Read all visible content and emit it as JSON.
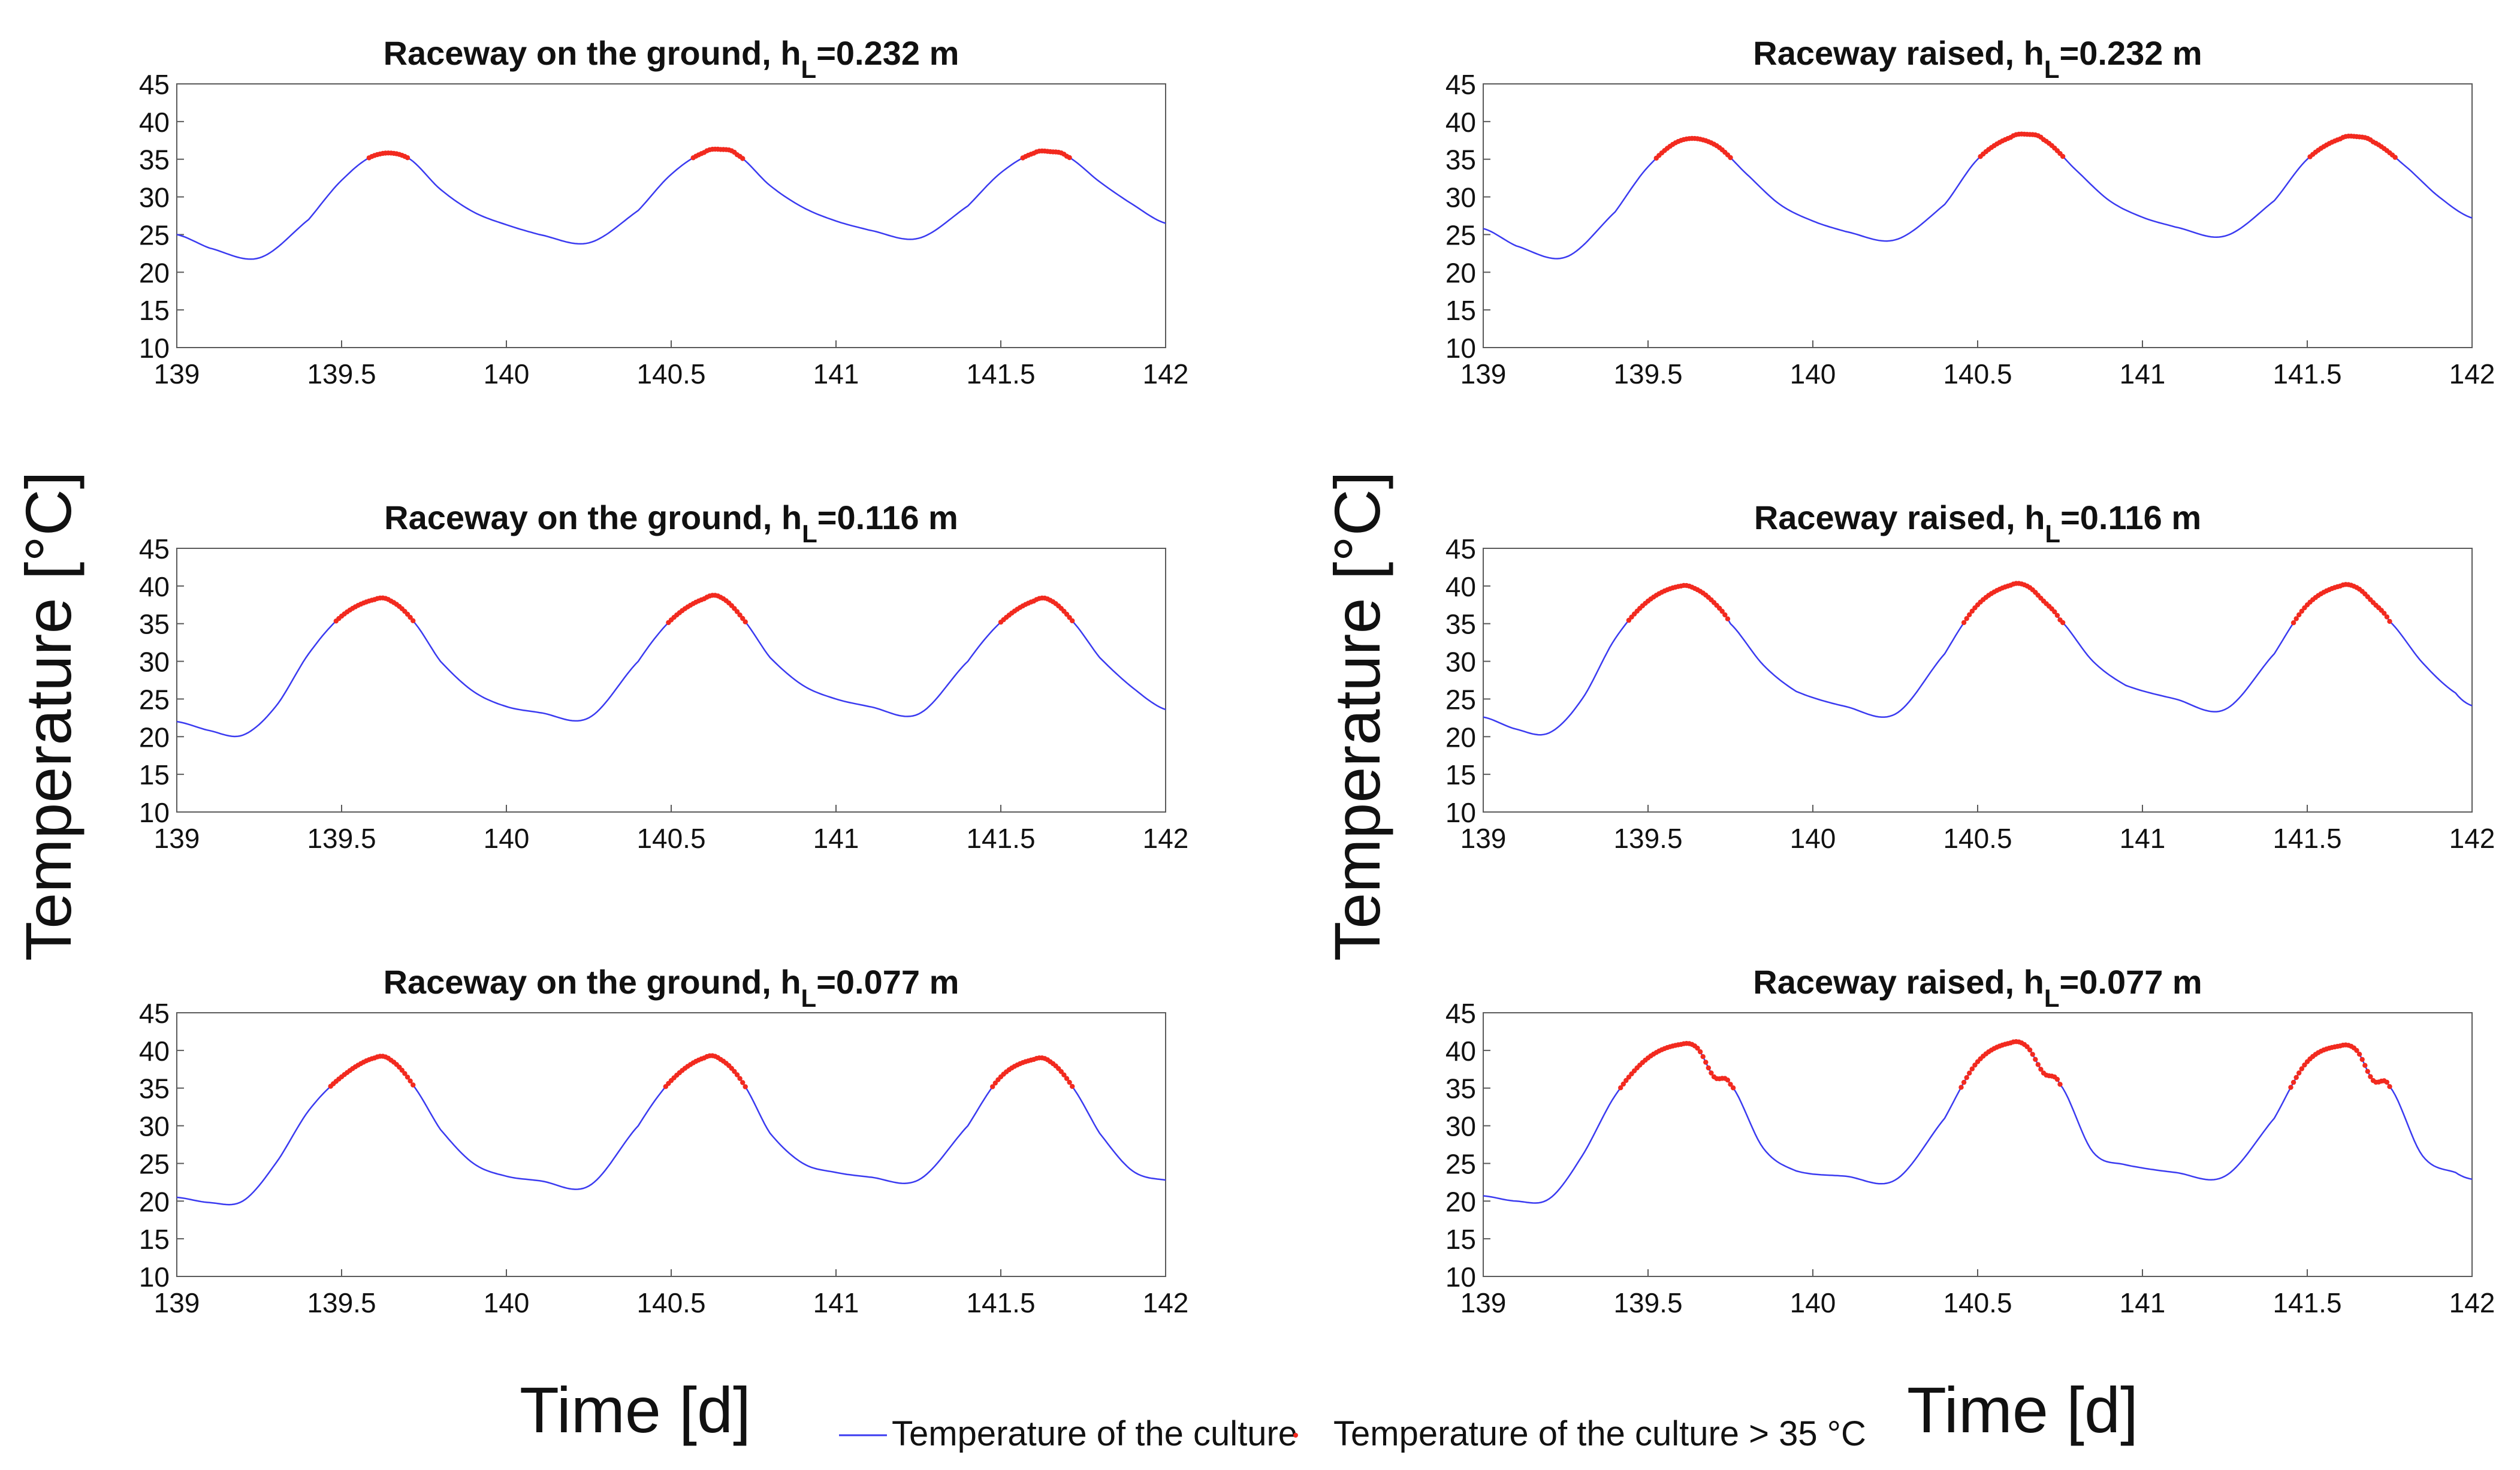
{
  "figure": {
    "left_ylabel": "Temperature [°C]",
    "right_ylabel": "Temperature [°C]",
    "left_xlabel": "Time [d]",
    "right_xlabel": "Time [d]",
    "legend": {
      "line_label": "Temperature of the culture",
      "dot_label": "Temperature of the culture > 35 °C"
    }
  },
  "colors": {
    "line": "#3a3af0",
    "hot": "#f22a1f",
    "axis": "#5a5a5a",
    "text": "#111111"
  },
  "chart_data": [
    {
      "type": "line",
      "title_prefix": "Raceway on the ground, h",
      "title_sub": "L",
      "title_suffix": "=0.232 m",
      "xlim": [
        139,
        142
      ],
      "ylim": [
        10,
        45
      ],
      "xticks": [
        "139",
        "139.5",
        "140",
        "140.5",
        "141",
        "141.5",
        "142"
      ],
      "yticks": [
        "10",
        "15",
        "20",
        "25",
        "30",
        "35",
        "40",
        "45"
      ],
      "threshold": 35,
      "x": [
        139,
        139.1,
        139.25,
        139.4,
        139.5,
        139.6,
        139.7,
        139.8,
        139.9,
        140.0,
        140.1,
        140.25,
        140.4,
        140.5,
        140.6,
        140.65,
        140.7,
        140.8,
        140.9,
        141.0,
        141.1,
        141.25,
        141.4,
        141.5,
        141.6,
        141.65,
        141.7,
        141.8,
        141.9,
        142.0
      ],
      "y": [
        25.0,
        23.2,
        21.9,
        27.0,
        32.2,
        35.5,
        35.2,
        31.0,
        28.0,
        26.3,
        25.0,
        23.9,
        28.2,
        33.0,
        35.9,
        36.3,
        35.6,
        31.5,
        28.6,
        26.8,
        25.6,
        24.5,
        28.8,
        33.2,
        35.8,
        36.0,
        35.4,
        32.0,
        29.0,
        26.5
      ]
    },
    {
      "type": "line",
      "title_prefix": "Raceway raised, h",
      "title_sub": "L",
      "title_suffix": "=0.232 m",
      "xlim": [
        139,
        142
      ],
      "ylim": [
        10,
        45
      ],
      "xticks": [
        "139",
        "139.5",
        "140",
        "140.5",
        "141",
        "141.5",
        "142"
      ],
      "yticks": [
        "10",
        "15",
        "20",
        "25",
        "30",
        "35",
        "40",
        "45"
      ],
      "threshold": 35,
      "x": [
        139,
        139.1,
        139.25,
        139.4,
        139.5,
        139.6,
        139.7,
        139.8,
        139.9,
        140.0,
        140.1,
        140.25,
        140.4,
        140.5,
        140.6,
        140.65,
        140.7,
        140.8,
        140.9,
        141.0,
        141.1,
        141.25,
        141.4,
        141.5,
        141.6,
        141.65,
        141.7,
        141.8,
        141.9,
        142.0
      ],
      "y": [
        25.8,
        23.5,
        22.0,
        28.0,
        34.0,
        37.5,
        37.0,
        33.0,
        29.0,
        26.8,
        25.4,
        24.3,
        29.0,
        35.0,
        37.9,
        38.3,
        37.6,
        33.5,
        29.5,
        27.3,
        26.0,
        24.8,
        29.5,
        35.0,
        37.7,
        38.0,
        37.3,
        34.0,
        30.0,
        27.2
      ]
    },
    {
      "type": "line",
      "title_prefix": "Raceway on the ground, h",
      "title_sub": "L",
      "title_suffix": "=0.116 m",
      "xlim": [
        139,
        142
      ],
      "ylim": [
        10,
        45
      ],
      "xticks": [
        "139",
        "139.5",
        "140",
        "140.5",
        "141",
        "141.5",
        "142"
      ],
      "yticks": [
        "10",
        "15",
        "20",
        "25",
        "30",
        "35",
        "40",
        "45"
      ],
      "threshold": 35,
      "x": [
        139,
        139.1,
        139.2,
        139.3,
        139.4,
        139.5,
        139.6,
        139.65,
        139.72,
        139.8,
        139.9,
        140.0,
        140.1,
        140.25,
        140.4,
        140.5,
        140.6,
        140.65,
        140.72,
        140.8,
        140.9,
        141.0,
        141.1,
        141.25,
        141.4,
        141.5,
        141.6,
        141.65,
        141.72,
        141.8,
        141.9,
        142.0
      ],
      "y": [
        22.0,
        20.8,
        20.2,
        24.0,
        31.0,
        36.0,
        38.2,
        38.0,
        35.2,
        30.0,
        26.0,
        24.0,
        23.2,
        22.5,
        30.0,
        35.5,
        38.3,
        38.5,
        35.5,
        30.5,
        26.8,
        25.0,
        24.0,
        23.0,
        30.0,
        35.2,
        38.0,
        38.1,
        35.2,
        30.5,
        26.5,
        23.6
      ]
    },
    {
      "type": "line",
      "title_prefix": "Raceway raised, h",
      "title_sub": "L",
      "title_suffix": "=0.116 m",
      "xlim": [
        139,
        142
      ],
      "ylim": [
        10,
        45
      ],
      "xticks": [
        "139",
        "139.5",
        "140",
        "140.5",
        "141",
        "141.5",
        "142"
      ],
      "yticks": [
        "10",
        "15",
        "20",
        "25",
        "30",
        "35",
        "40",
        "45"
      ],
      "threshold": 35,
      "x": [
        139,
        139.1,
        139.2,
        139.3,
        139.4,
        139.5,
        139.6,
        139.65,
        139.7,
        139.75,
        139.85,
        139.95,
        140.1,
        140.25,
        140.4,
        140.5,
        140.6,
        140.65,
        140.7,
        140.75,
        140.85,
        140.95,
        141.1,
        141.25,
        141.4,
        141.5,
        141.6,
        141.65,
        141.7,
        141.75,
        141.85,
        141.95,
        142.0
      ],
      "y": [
        22.6,
        21.0,
        20.5,
        25.0,
        33.0,
        38.0,
        40.0,
        39.5,
        37.8,
        35.0,
        29.5,
        26.0,
        24.0,
        23.0,
        31.0,
        37.5,
        40.1,
        40.0,
        38.0,
        35.5,
        30.0,
        26.8,
        25.0,
        23.6,
        31.0,
        37.5,
        40.0,
        39.8,
        37.8,
        35.3,
        29.8,
        25.8,
        24.1
      ]
    },
    {
      "type": "line",
      "title_prefix": "Raceway on the ground, h",
      "title_sub": "L",
      "title_suffix": "=0.077 m",
      "xlim": [
        139,
        142
      ],
      "ylim": [
        10,
        45
      ],
      "xticks": [
        "139",
        "139.5",
        "140",
        "140.5",
        "141",
        "141.5",
        "142"
      ],
      "yticks": [
        "10",
        "15",
        "20",
        "25",
        "30",
        "35",
        "40",
        "45"
      ],
      "threshold": 35,
      "x": [
        139,
        139.1,
        139.2,
        139.3,
        139.4,
        139.5,
        139.6,
        139.65,
        139.72,
        139.8,
        139.9,
        140.0,
        140.1,
        140.25,
        140.4,
        140.5,
        140.6,
        140.65,
        140.72,
        140.8,
        140.9,
        141.0,
        141.1,
        141.25,
        141.4,
        141.5,
        141.6,
        141.65,
        141.72,
        141.8,
        141.9,
        142.0
      ],
      "y": [
        20.5,
        19.8,
        20.0,
        25.0,
        32.0,
        36.5,
        39.0,
        38.7,
        35.2,
        29.5,
        25.0,
        23.3,
        22.7,
        22.0,
        30.0,
        36.0,
        39.0,
        38.8,
        35.5,
        29.0,
        25.0,
        23.8,
        23.2,
        22.8,
        30.0,
        36.5,
        38.8,
        38.5,
        35.0,
        29.0,
        24.0,
        22.8
      ]
    },
    {
      "type": "line",
      "title_prefix": "Raceway raised, h",
      "title_sub": "L",
      "title_suffix": "=0.077 m",
      "xlim": [
        139,
        142
      ],
      "ylim": [
        10,
        45
      ],
      "xticks": [
        "139",
        "139.5",
        "140",
        "140.5",
        "141",
        "141.5",
        "142"
      ],
      "yticks": [
        "10",
        "15",
        "20",
        "25",
        "30",
        "35",
        "40",
        "45"
      ],
      "threshold": 35,
      "x": [
        139,
        139.1,
        139.2,
        139.3,
        139.4,
        139.5,
        139.6,
        139.65,
        139.7,
        139.75,
        139.85,
        139.95,
        140.1,
        140.25,
        140.4,
        140.5,
        140.6,
        140.65,
        140.7,
        140.75,
        140.85,
        140.95,
        141.1,
        141.25,
        141.4,
        141.5,
        141.6,
        141.65,
        141.7,
        141.75,
        141.85,
        141.95,
        142.0
      ],
      "y": [
        20.7,
        20.0,
        20.3,
        26.0,
        34.0,
        39.0,
        40.8,
        40.3,
        36.5,
        35.5,
        27.0,
        24.0,
        23.3,
        22.8,
        31.0,
        38.5,
        41.0,
        40.5,
        37.0,
        35.5,
        26.5,
        24.8,
        23.8,
        23.3,
        31.0,
        38.5,
        40.6,
        40.0,
        36.0,
        35.2,
        26.0,
        23.8,
        22.9
      ]
    }
  ]
}
